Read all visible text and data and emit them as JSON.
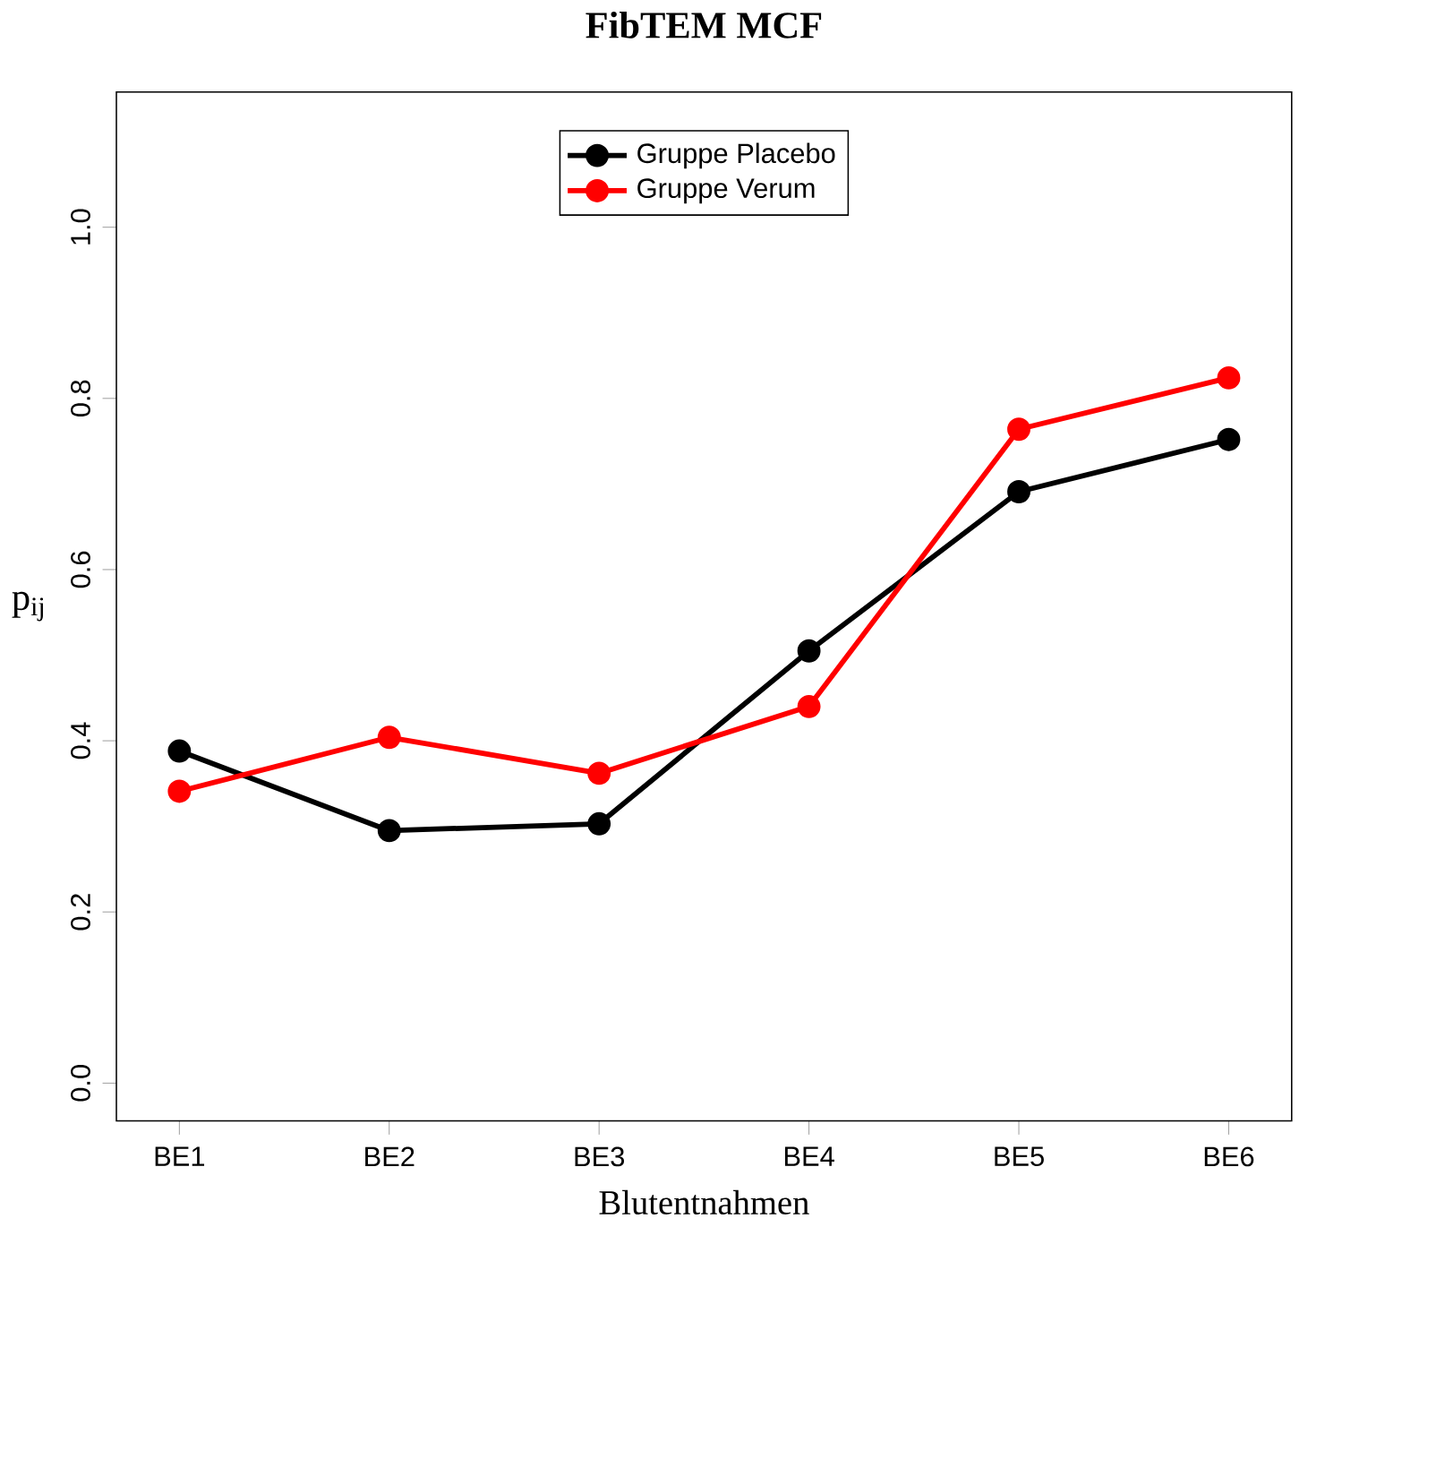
{
  "chart_data": {
    "type": "line",
    "title": "**FibTEM MCF**",
    "xlabel": "Blutentnahmen",
    "ylabel": "p$_{ij}$",
    "categories": [
      "BE1",
      "BE2",
      "BE3",
      "BE4",
      "BE5",
      "BE6"
    ],
    "series": [
      {
        "name": "Gruppe Placebo",
        "color": "#000000",
        "values": [
          0.388,
          0.295,
          0.303,
          0.505,
          0.691,
          0.752
        ]
      },
      {
        "name": "Gruppe Verum",
        "color": "#ff0000",
        "values": [
          0.341,
          0.404,
          0.362,
          0.44,
          0.764,
          0.824
        ]
      }
    ],
    "ylim": [
      -0.044,
      1.158
    ],
    "yticks": [
      {
        "value": 0,
        "label": "0.0"
      },
      {
        "value": 0.2,
        "label": "0.2"
      },
      {
        "value": 0.4,
        "label": "0.4"
      },
      {
        "value": 0.6,
        "label": "0.6"
      },
      {
        "value": 0.8,
        "label": "0.8"
      },
      {
        "value": 1.0,
        "label": "1.0"
      }
    ],
    "legend": "top",
    "marker": "circle",
    "line_style": "solid",
    "grid": false
  }
}
